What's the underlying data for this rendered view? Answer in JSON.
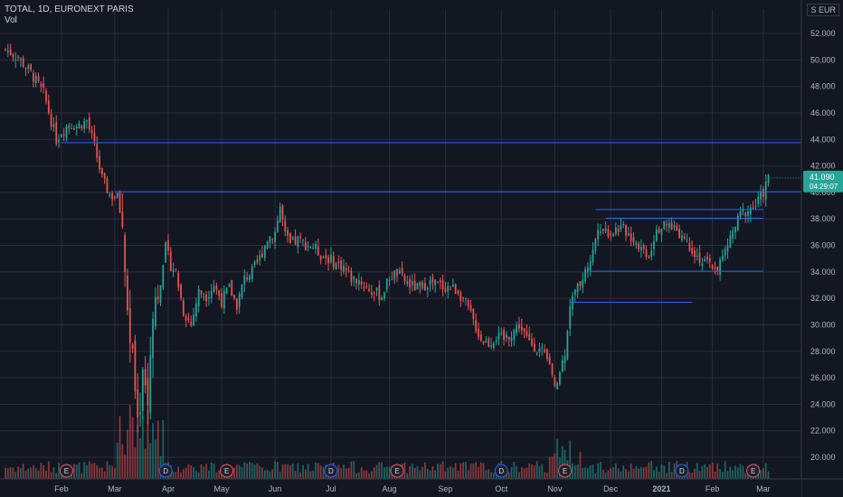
{
  "header": {
    "symbol_line": "TOTAL, 1D, EURONEXT PARIS",
    "indicator": "Vol"
  },
  "currency": "EUR",
  "currency_prefix": "S",
  "price_label": {
    "price": "41.090",
    "countdown": "04:29:07"
  },
  "colors": {
    "up": "#26a69a",
    "down": "#ef5350",
    "line": "#2962ff",
    "grid": "#2a2e39",
    "bg": "#131722",
    "event": "#ef5350",
    "dividend": "#2962ff"
  },
  "chart_data": {
    "type": "candlestick",
    "ylim": [
      19,
      53
    ],
    "y_ticks": [
      20,
      22,
      24,
      26,
      28,
      30,
      32,
      34,
      36,
      38,
      40,
      42,
      44,
      46,
      48,
      50,
      52
    ],
    "y_tick_labels": [
      "20.000",
      "22.000",
      "24.000",
      "26.000",
      "28.000",
      "30.000",
      "32.000",
      "34.000",
      "36.000",
      "38.000",
      "40.000",
      "42.000",
      "44.000",
      "46.000",
      "48.000",
      "50.000",
      "52.000"
    ],
    "x_ticks": [
      "Feb",
      "Mar",
      "Apr",
      "May",
      "Jun",
      "Jul",
      "Aug",
      "Sep",
      "Oct",
      "Nov",
      "Dec",
      "2021",
      "Feb",
      "Mar"
    ],
    "x_tick_session": [
      22,
      43,
      64,
      85,
      106,
      128,
      151,
      173,
      195,
      216,
      238,
      258,
      278,
      298
    ],
    "total_sessions": 308,
    "close_anchors": [
      [
        0,
        50.8
      ],
      [
        5,
        50.2
      ],
      [
        10,
        49.0
      ],
      [
        15,
        47.5
      ],
      [
        20,
        44.0
      ],
      [
        22,
        44.6
      ],
      [
        25,
        45.2
      ],
      [
        28,
        45.0
      ],
      [
        32,
        45.4
      ],
      [
        35,
        43.5
      ],
      [
        38,
        41.0
      ],
      [
        41,
        39.8
      ],
      [
        44,
        39.6
      ],
      [
        46,
        37.5
      ],
      [
        48,
        31.0
      ],
      [
        50,
        27.5
      ],
      [
        52,
        22.0
      ],
      [
        54,
        26.5
      ],
      [
        56,
        24.2
      ],
      [
        58,
        31.5
      ],
      [
        61,
        33.0
      ],
      [
        63,
        35.8
      ],
      [
        65,
        34.5
      ],
      [
        67,
        34.0
      ],
      [
        70,
        31.0
      ],
      [
        73,
        30.0
      ],
      [
        76,
        32.5
      ],
      [
        79,
        32.2
      ],
      [
        82,
        33.0
      ],
      [
        85,
        31.8
      ],
      [
        88,
        32.8
      ],
      [
        91,
        31.5
      ],
      [
        94,
        33.5
      ],
      [
        97,
        34.0
      ],
      [
        100,
        35.0
      ],
      [
        103,
        36.5
      ],
      [
        106,
        37.0
      ],
      [
        108,
        38.9
      ],
      [
        110,
        36.7
      ],
      [
        112,
        36.0
      ],
      [
        115,
        36.4
      ],
      [
        118,
        36.1
      ],
      [
        121,
        35.9
      ],
      [
        124,
        35.3
      ],
      [
        127,
        35.0
      ],
      [
        130,
        34.6
      ],
      [
        133,
        34.4
      ],
      [
        136,
        33.5
      ],
      [
        139,
        33.4
      ],
      [
        142,
        32.8
      ],
      [
        145,
        32.4
      ],
      [
        148,
        32.2
      ],
      [
        151,
        33.6
      ],
      [
        154,
        33.9
      ],
      [
        157,
        33.3
      ],
      [
        160,
        32.9
      ],
      [
        163,
        32.7
      ],
      [
        166,
        33.2
      ],
      [
        169,
        33.1
      ],
      [
        172,
        32.9
      ],
      [
        175,
        32.8
      ],
      [
        178,
        32.6
      ],
      [
        181,
        31.6
      ],
      [
        184,
        30.3
      ],
      [
        187,
        28.9
      ],
      [
        190,
        28.6
      ],
      [
        193,
        29.1
      ],
      [
        196,
        28.9
      ],
      [
        199,
        29.4
      ],
      [
        202,
        30.0
      ],
      [
        205,
        28.9
      ],
      [
        208,
        28.4
      ],
      [
        211,
        27.9
      ],
      [
        214,
        26.9
      ],
      [
        216,
        25.0
      ],
      [
        218,
        26.4
      ],
      [
        220,
        28.0
      ],
      [
        222,
        31.6
      ],
      [
        225,
        32.8
      ],
      [
        228,
        34.0
      ],
      [
        231,
        35.5
      ],
      [
        233,
        37.6
      ],
      [
        235,
        37.2
      ],
      [
        238,
        37.0
      ],
      [
        241,
        37.3
      ],
      [
        244,
        37.1
      ],
      [
        247,
        36.5
      ],
      [
        250,
        35.8
      ],
      [
        253,
        35.3
      ],
      [
        256,
        37.3
      ],
      [
        259,
        37.4
      ],
      [
        262,
        37.5
      ],
      [
        265,
        37.0
      ],
      [
        268,
        36.3
      ],
      [
        271,
        35.5
      ],
      [
        274,
        34.7
      ],
      [
        277,
        34.5
      ],
      [
        280,
        34.3
      ],
      [
        283,
        35.5
      ],
      [
        286,
        37.0
      ],
      [
        289,
        38.3
      ],
      [
        292,
        38.7
      ],
      [
        295,
        39.0
      ],
      [
        298,
        40.0
      ],
      [
        300,
        41.09
      ]
    ],
    "horizontal_levels": [
      {
        "price": 43.75,
        "from_session": 22,
        "to_session": 320
      },
      {
        "price": 40.05,
        "from_session": 43,
        "to_session": 320
      },
      {
        "price": 38.7,
        "from_session": 232,
        "to_session": 298
      },
      {
        "price": 38.05,
        "from_session": 236,
        "to_session": 298
      },
      {
        "price": 34.05,
        "from_session": 230,
        "to_session": 298
      },
      {
        "price": 31.7,
        "from_session": 222,
        "to_session": 270
      }
    ],
    "events": [
      {
        "label": "E",
        "session": 24,
        "kind": "earnings"
      },
      {
        "label": "D",
        "session": 63,
        "kind": "dividend"
      },
      {
        "label": "E",
        "session": 87,
        "kind": "earnings"
      },
      {
        "label": "D",
        "session": 128,
        "kind": "dividend"
      },
      {
        "label": "E",
        "session": 154,
        "kind": "earnings"
      },
      {
        "label": "D",
        "session": 195,
        "kind": "dividend"
      },
      {
        "label": "E",
        "session": 220,
        "kind": "earnings"
      },
      {
        "label": "D",
        "session": 266,
        "kind": "dividend"
      },
      {
        "label": "E",
        "session": 294,
        "kind": "earnings"
      }
    ]
  }
}
